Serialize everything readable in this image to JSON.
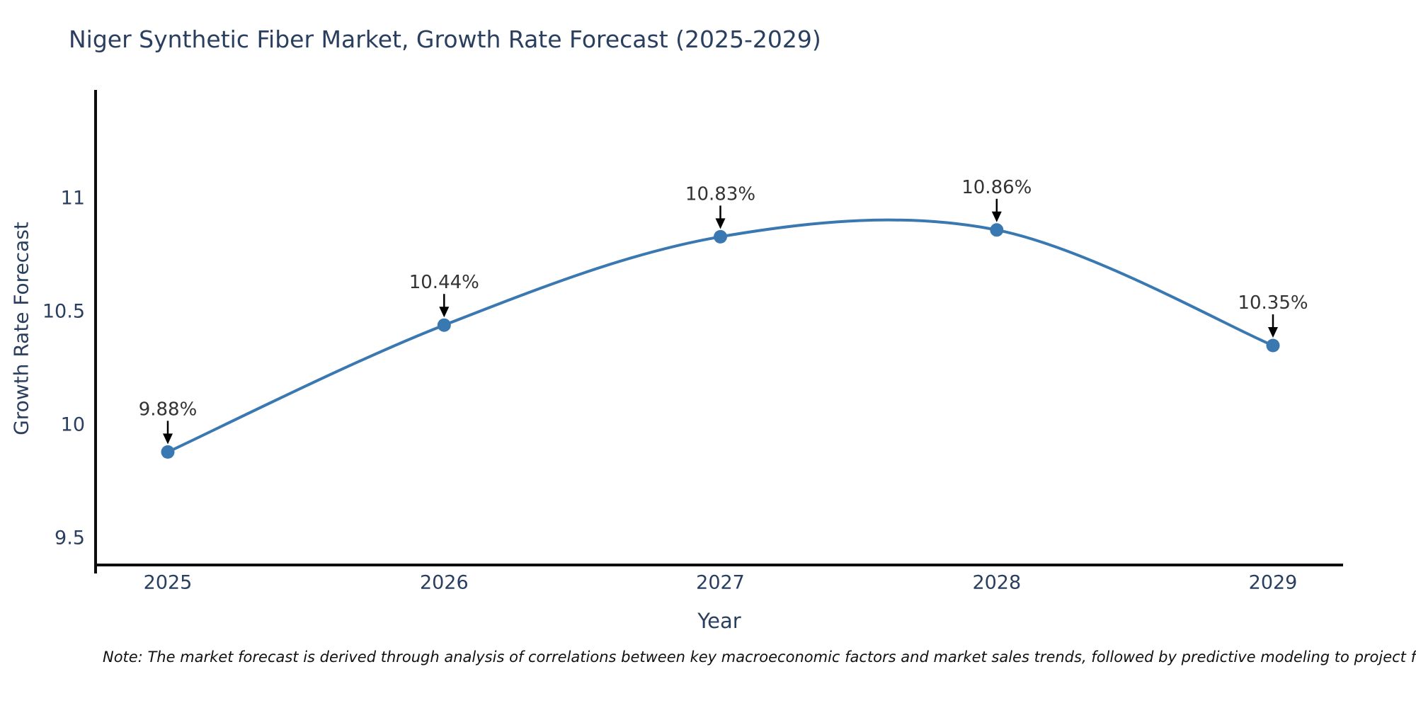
{
  "title": "Niger Synthetic Fiber Market, Growth Rate Forecast (2025-2029)",
  "note": "Note: The market forecast is derived through analysis of correlations between key macroeconomic factors and market sales trends, followed by predictive modeling to project future sal",
  "colors": {
    "title_text": "#2a3f5f",
    "tick_text": "#2a3f5f",
    "annotation_text": "#333333",
    "axis_line": "#0d0d0d",
    "line": "#3a78b2",
    "background": "#ffffff",
    "arrow": "#000000"
  },
  "chart_data": {
    "type": "line",
    "curve": "spline",
    "title": "Niger Synthetic Fiber Market, Growth Rate Forecast (2025-2029)",
    "xlabel": "Year",
    "ylabel": "Growth Rate Forecast",
    "x": [
      2025,
      2026,
      2027,
      2028,
      2029
    ],
    "values": [
      9.88,
      10.44,
      10.83,
      10.86,
      10.35
    ],
    "point_labels": [
      "9.88%",
      "10.44%",
      "10.83%",
      "10.86%",
      "10.35%"
    ],
    "xtick_labels": [
      "2025",
      "2026",
      "2027",
      "2028",
      "2029"
    ],
    "yticks": [
      9.5,
      10,
      10.5,
      11
    ],
    "ytick_labels": [
      "9.5",
      "10",
      "10.5",
      "11"
    ],
    "ylim": [
      9.38,
      11.48
    ],
    "grid": false,
    "legend": "none",
    "line_color": "#3a78b2",
    "marker_color": "#3a78b2"
  }
}
